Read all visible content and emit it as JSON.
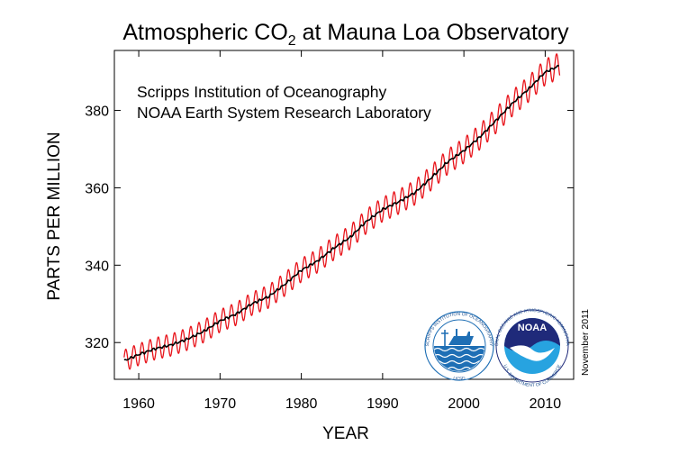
{
  "chart_data": {
    "type": "line",
    "title_main": "Atmospheric CO",
    "title_subscript": "2",
    "title_rest": " at Mauna Loa Observatory",
    "xlabel": "YEAR",
    "ylabel": "PARTS PER MILLION",
    "xlim": [
      1957,
      2013.5
    ],
    "ylim": [
      310.5,
      395.5
    ],
    "xticks": [
      1960,
      1970,
      1980,
      1990,
      2000,
      2010
    ],
    "yticks": [
      320,
      340,
      360,
      380
    ],
    "grid": false,
    "annotations": {
      "institutions": [
        "Scripps Institution of Oceanography",
        "NOAA Earth System Research Laboratory"
      ],
      "date": "November 2011"
    },
    "series": [
      {
        "role": "monthly",
        "color": "#e8141b",
        "x_range": [
          1958.2,
          2011.8
        ],
        "seasonal_amplitude_ppm": [
          2.8,
          3.4
        ]
      },
      {
        "role": "trend",
        "color": "#000000",
        "x": [
          1958.2,
          1960,
          1962,
          1964,
          1966,
          1968,
          1970,
          1972,
          1974,
          1976,
          1978,
          1980,
          1982,
          1984,
          1986,
          1988,
          1990,
          1992,
          1994,
          1996,
          1998,
          2000,
          2002,
          2004,
          2006,
          2008,
          2010,
          2011.8
        ],
        "y": [
          315.3,
          316.9,
          318.4,
          319.4,
          320.9,
          322.9,
          325.6,
          327.4,
          330.1,
          331.9,
          335.1,
          338.7,
          341.1,
          344.4,
          347.2,
          351.3,
          354.4,
          356.4,
          358.8,
          362.6,
          366.7,
          369.6,
          373.2,
          377.5,
          381.9,
          385.6,
          389.9,
          391.6
        ]
      }
    ]
  },
  "logos": {
    "scripps": {
      "ring_text": "SCRIPPS INSTITUTION OF OCEANOGRAPHY",
      "bottom_text": "UCSD"
    },
    "noaa": {
      "center_text": "NOAA",
      "ring_text": "NATIONAL OCEANIC AND ATMOSPHERIC ADMINISTRATION",
      "bottom_text": "U.S. DEPARTMENT OF COMMERCE"
    }
  },
  "colors": {
    "monthly": "#e8141b",
    "trend": "#000000",
    "noaa_dark": "#1f2a7a",
    "noaa_light": "#27a3e0",
    "scripps_blue": "#1f6fb5"
  }
}
